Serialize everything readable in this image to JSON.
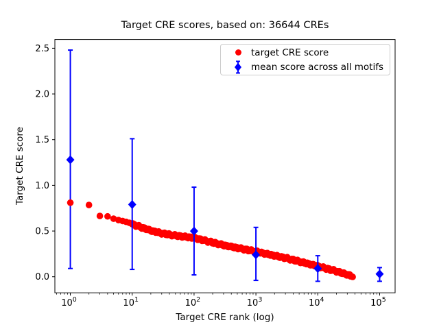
{
  "title": "Target CRE scores, based on: 36644 CREs",
  "axes": {
    "xlabel": "Target CRE rank (log)",
    "ylabel": "Target CRE score"
  },
  "legend": {
    "items": [
      {
        "label": "target CRE score",
        "marker": "red-circle",
        "color": "#ff0000"
      },
      {
        "label": "mean score across all motifs",
        "marker": "blue-diamond-errorbar",
        "color": "#0000ff"
      }
    ]
  },
  "colors": {
    "target_series": "#ff0000",
    "mean_series": "#0000ff",
    "axis": "#000000",
    "legend_border": "#cccccc",
    "background": "#ffffff"
  },
  "chart_data": {
    "type": "scatter",
    "title": "Target CRE scores, based on: 36644 CREs",
    "xlabel": "Target CRE rank (log)",
    "ylabel": "Target CRE score",
    "x_scale": "log",
    "xlim": [
      0.5623,
      177828
    ],
    "ylim": [
      -0.176,
      2.596
    ],
    "x_tick_exponents": [
      0,
      1,
      2,
      3,
      4,
      5
    ],
    "y_ticks": [
      0.0,
      0.5,
      1.0,
      1.5,
      2.0,
      2.5
    ],
    "grid": false,
    "legend_position": "upper right",
    "series": [
      {
        "name": "target CRE score",
        "marker": "circle",
        "color": "#ff0000",
        "n_points": 36644,
        "max_rank": 36644,
        "note": "36644 dots at integer ranks forming a dense decreasing band; anchor points [rank, score] sampled from the curve",
        "anchors": [
          [
            1,
            0.81
          ],
          [
            2,
            0.785
          ],
          [
            3,
            0.665
          ],
          [
            4,
            0.66
          ],
          [
            5,
            0.635
          ],
          [
            6,
            0.62
          ],
          [
            7,
            0.61
          ],
          [
            8,
            0.6
          ],
          [
            9,
            0.59
          ],
          [
            10,
            0.575
          ],
          [
            20,
            0.505
          ],
          [
            30,
            0.475
          ],
          [
            50,
            0.45
          ],
          [
            100,
            0.425
          ],
          [
            300,
            0.345
          ],
          [
            1000,
            0.275
          ],
          [
            3000,
            0.205
          ],
          [
            10000,
            0.115
          ],
          [
            20000,
            0.06
          ],
          [
            36644,
            0.005
          ]
        ]
      },
      {
        "name": "mean score across all motifs",
        "marker": "diamond",
        "color": "#0000ff",
        "x": [
          1,
          10,
          100,
          1000,
          10000,
          100000
        ],
        "mean": [
          1.28,
          0.79,
          0.5,
          0.24,
          0.09,
          0.03
        ],
        "err_lower": [
          0.09,
          0.08,
          0.02,
          -0.04,
          -0.05,
          -0.05
        ],
        "err_upper": [
          2.48,
          1.51,
          0.98,
          0.54,
          0.23,
          0.1
        ]
      }
    ]
  }
}
